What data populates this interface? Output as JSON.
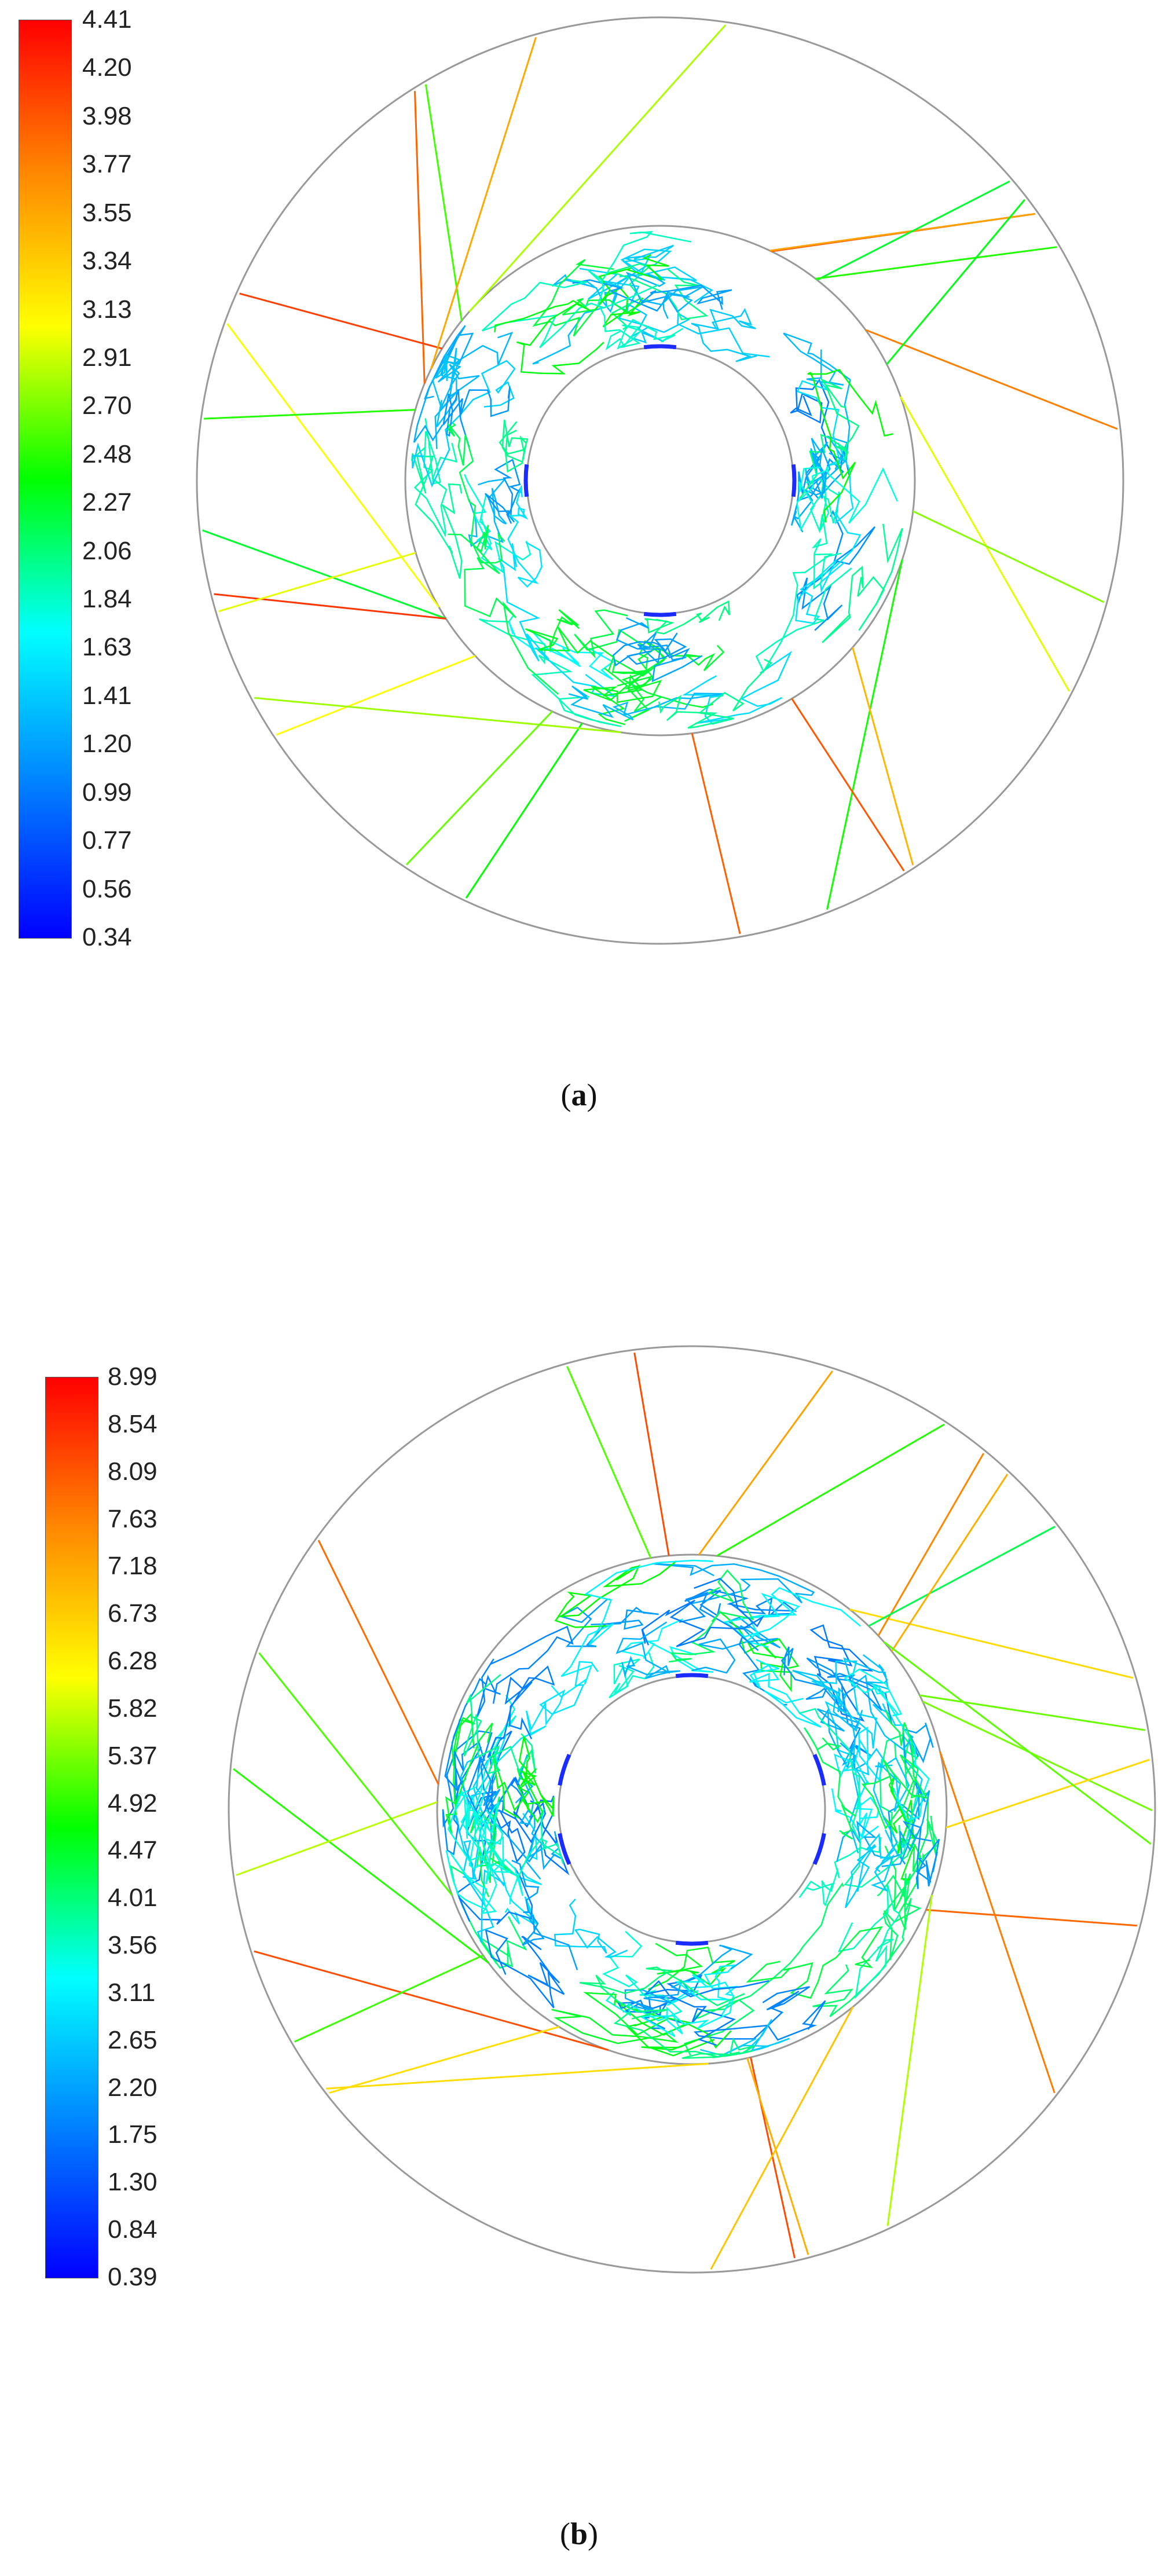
{
  "panels": [
    {
      "id": "a",
      "caption_letter": "a",
      "colorbar": {
        "min": 0.34,
        "max": 4.41,
        "ticks": [
          "4.41",
          "4.20",
          "3.98",
          "3.77",
          "3.55",
          "3.34",
          "3.13",
          "2.91",
          "2.70",
          "2.48",
          "2.27",
          "2.06",
          "1.84",
          "1.63",
          "1.41",
          "1.20",
          "0.99",
          "0.77",
          "0.56",
          "0.34"
        ]
      }
    },
    {
      "id": "b",
      "caption_letter": "b",
      "colorbar": {
        "min": 0.39,
        "max": 8.99,
        "ticks": [
          "8.99",
          "8.54",
          "8.09",
          "7.63",
          "7.18",
          "6.73",
          "6.28",
          "5.82",
          "5.37",
          "4.92",
          "4.47",
          "4.01",
          "3.56",
          "3.11",
          "2.65",
          "2.20",
          "1.75",
          "1.30",
          "0.84",
          "0.39"
        ]
      }
    }
  ],
  "colors": {
    "gradient": [
      "#ff0000",
      "#ff8800",
      "#ffff00",
      "#00ff00",
      "#00ffff",
      "#0080ff",
      "#0000ff"
    ],
    "outline": "#999999"
  }
}
